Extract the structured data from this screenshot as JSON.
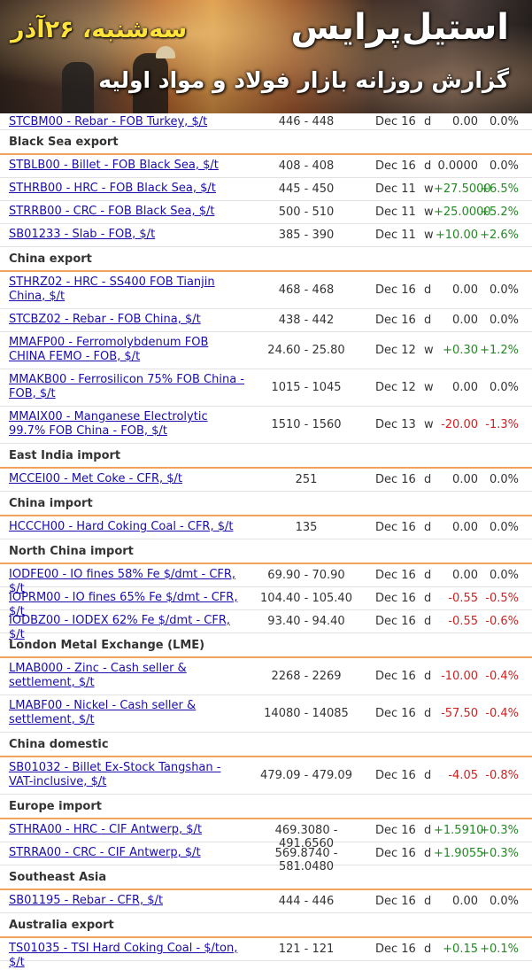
{
  "banner": {
    "date": "سه‌شنبه، ۲۶آذر",
    "title": "استیل‌پرایس",
    "subtitle": "گزارش روزانه بازار فولاد و مواد اولیه"
  },
  "top_row": {
    "code": "STCBM00 - Rebar - FOB Turkey, $/t",
    "range": "446 - 448",
    "date": "Dec 16",
    "freq": "d",
    "change": "0.00",
    "pct": "0.0%",
    "dir": "zero"
  },
  "sections": [
    {
      "title": "Black Sea export",
      "rows": [
        {
          "code": "STBLB00 - Billet - FOB Black Sea, $/t",
          "range": "408 - 408",
          "date": "Dec 16",
          "freq": "d",
          "change": "0.0000",
          "pct": "0.0%",
          "dir": "zero"
        },
        {
          "code": "STHRB00 - HRC - FOB Black Sea, $/t",
          "range": "445 - 450",
          "date": "Dec 11",
          "freq": "w",
          "change": "+27.5000",
          "pct": "+6.5%",
          "dir": "pos"
        },
        {
          "code": "STRRB00 - CRC - FOB Black Sea, $/t",
          "range": "500 - 510",
          "date": "Dec 11",
          "freq": "w",
          "change": "+25.0000",
          "pct": "+5.2%",
          "dir": "pos"
        },
        {
          "code": "SB01233 - Slab - FOB, $/t",
          "range": "385 - 390",
          "date": "Dec 11",
          "freq": "w",
          "change": "+10.00",
          "pct": "+2.6%",
          "dir": "pos"
        }
      ]
    },
    {
      "title": "China export",
      "rows": [
        {
          "code": "STHRZ02 - HRC - SS400 FOB Tianjin China, $/t",
          "range": "468 - 468",
          "date": "Dec 16",
          "freq": "d",
          "change": "0.00",
          "pct": "0.0%",
          "dir": "zero",
          "tall": true
        },
        {
          "code": "STCBZ02 - Rebar - FOB China, $/t",
          "range": "438 - 442",
          "date": "Dec 16",
          "freq": "d",
          "change": "0.00",
          "pct": "0.0%",
          "dir": "zero"
        },
        {
          "code": "MMAFP00 - Ferromolybdenum FOB CHINA FEMO - FOB, $/t",
          "range": "24.60 - 25.80",
          "date": "Dec 12",
          "freq": "w",
          "change": "+0.30",
          "pct": "+1.2%",
          "dir": "pos",
          "tall": true
        },
        {
          "code": "MMAKB00 - Ferrosilicon 75% FOB China - FOB, $/t",
          "range": "1015 - 1045",
          "date": "Dec 12",
          "freq": "w",
          "change": "0.00",
          "pct": "0.0%",
          "dir": "zero",
          "tall": true
        },
        {
          "code": "MMAIX00 - Manganese Electrolytic 99.7% FOB China - FOB, $/t",
          "range": "1510 - 1560",
          "date": "Dec 13",
          "freq": "w",
          "change": "-20.00",
          "pct": "-1.3%",
          "dir": "neg",
          "tall": true
        }
      ]
    },
    {
      "title": "East India import",
      "rows": [
        {
          "code": "MCCEI00 - Met Coke - CFR, $/t",
          "range": "251",
          "date": "Dec 16",
          "freq": "d",
          "change": "0.00",
          "pct": "0.0%",
          "dir": "zero"
        }
      ]
    },
    {
      "title": "China import",
      "rows": [
        {
          "code": "HCCCH00 - Hard Coking Coal - CFR, $/t",
          "range": "135",
          "date": "Dec 16",
          "freq": "d",
          "change": "0.00",
          "pct": "0.0%",
          "dir": "zero"
        }
      ]
    },
    {
      "title": "North China import",
      "rows": [
        {
          "code": "IODFE00 - IO fines 58% Fe $/dmt - CFR, $/t",
          "range": "69.90 - 70.90",
          "date": "Dec 16",
          "freq": "d",
          "change": "0.00",
          "pct": "0.0%",
          "dir": "zero"
        },
        {
          "code": "IOPRM00 - IO fines 65% Fe $/dmt - CFR, $/t",
          "range": "104.40 - 105.40",
          "date": "Dec 16",
          "freq": "d",
          "change": "-0.55",
          "pct": "-0.5%",
          "dir": "neg"
        },
        {
          "code": "IODBZ00 - IODEX 62% Fe $/dmt - CFR, $/t",
          "range": "93.40 - 94.40",
          "date": "Dec 16",
          "freq": "d",
          "change": "-0.55",
          "pct": "-0.6%",
          "dir": "neg"
        }
      ]
    },
    {
      "title": "London Metal Exchange (LME)",
      "rows": [
        {
          "code": "LMAB000 - Zinc - Cash seller & settlement, $/t",
          "range": "2268 - 2269",
          "date": "Dec 16",
          "freq": "d",
          "change": "-10.00",
          "pct": "-0.4%",
          "dir": "neg",
          "tall": true
        },
        {
          "code": "LMABF00 - Nickel - Cash seller & settlement, $/t",
          "range": "14080 - 14085",
          "date": "Dec 16",
          "freq": "d",
          "change": "-57.50",
          "pct": "-0.4%",
          "dir": "neg",
          "tall": true
        }
      ]
    },
    {
      "title": "China domestic",
      "rows": [
        {
          "code": "SB01032 - Billet Ex-Stock Tangshan - VAT-inclusive, $/t",
          "range": "479.09 - 479.09",
          "date": "Dec 16",
          "freq": "d",
          "change": "-4.05",
          "pct": "-0.8%",
          "dir": "neg",
          "tall": true
        }
      ]
    },
    {
      "title": "Europe import",
      "rows": [
        {
          "code": "STHRA00 - HRC - CIF Antwerp, $/t",
          "range": "469.3080 - 491.6560",
          "date": "Dec 16",
          "freq": "d",
          "change": "+1.5910",
          "pct": "+0.3%",
          "dir": "pos"
        },
        {
          "code": "STRRA00 - CRC - CIF Antwerp, $/t",
          "range": "569.8740 - 581.0480",
          "date": "Dec 16",
          "freq": "d",
          "change": "+1.9055",
          "pct": "+0.3%",
          "dir": "pos"
        }
      ]
    },
    {
      "title": "Southeast Asia",
      "rows": [
        {
          "code": "SB01195 - Rebar - CFR, $/t",
          "range": "444 - 446",
          "date": "Dec 16",
          "freq": "d",
          "change": "0.00",
          "pct": "0.0%",
          "dir": "zero"
        }
      ]
    },
    {
      "title": "Australia export",
      "rows": [
        {
          "code": "TS01035 - TSI Hard Coking Coal - $/ton, $/t",
          "range": "121 - 121",
          "date": "Dec 16",
          "freq": "d",
          "change": "+0.15",
          "pct": "+0.1%",
          "dir": "pos"
        }
      ]
    }
  ]
}
